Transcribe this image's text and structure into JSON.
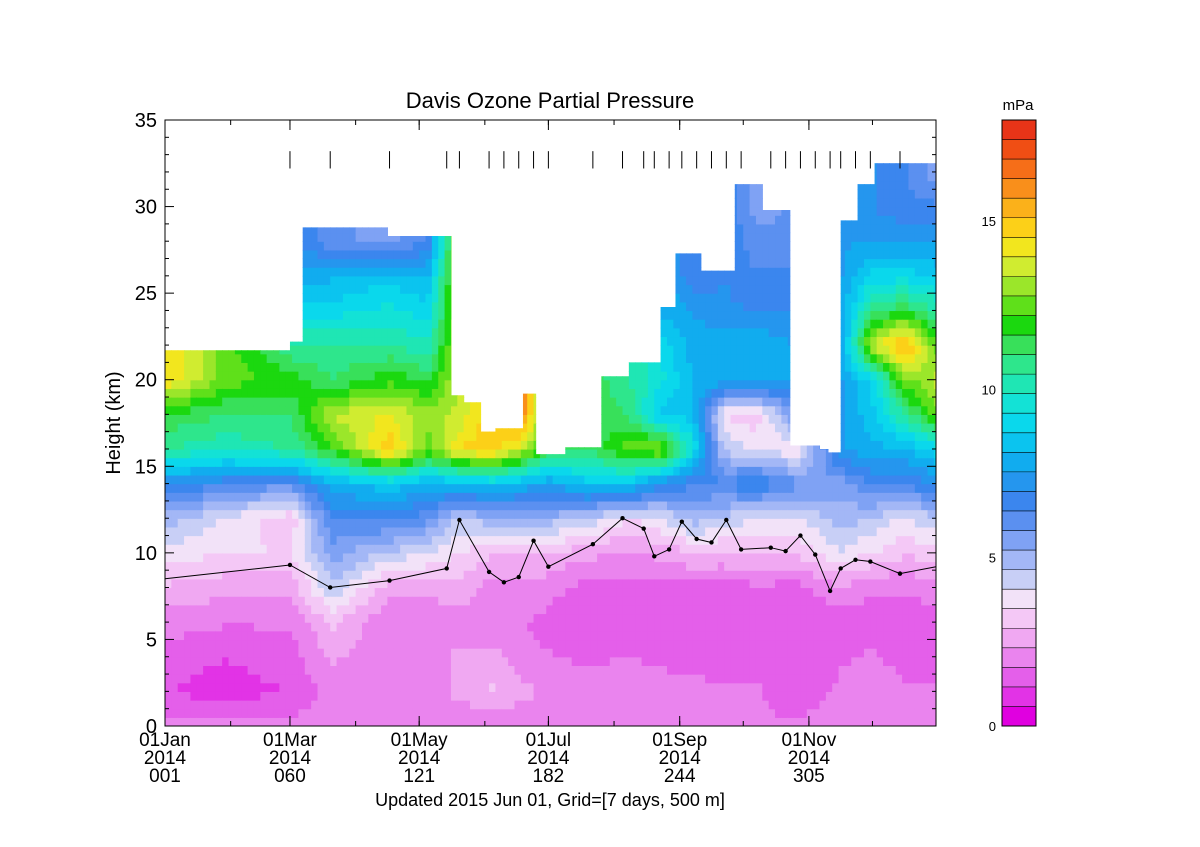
{
  "chart_data": {
    "type": "heatmap",
    "title": "Davis Ozone Partial Pressure",
    "ylabel": "Height (km)",
    "colorbar_label": "mPa",
    "footer": "Updated 2015 Jun 01, Grid=[7 days, 500 m]",
    "xlim": [
      1,
      365
    ],
    "ylim": [
      0,
      35
    ],
    "zlim": [
      0,
      18
    ],
    "y_ticks": [
      0,
      5,
      10,
      15,
      20,
      25,
      30,
      35
    ],
    "x_ticks": [
      {
        "day": 1,
        "date": "01Jan",
        "year": "2014",
        "doy": "001"
      },
      {
        "day": 60,
        "date": "01Mar",
        "year": "2014",
        "doy": "060"
      },
      {
        "day": 121,
        "date": "01May",
        "year": "2014",
        "doy": "121"
      },
      {
        "day": 182,
        "date": "01Jul",
        "year": "2014",
        "doy": "182"
      },
      {
        "day": 244,
        "date": "01Sep",
        "year": "2014",
        "doy": "244"
      },
      {
        "day": 305,
        "date": "01Nov",
        "year": "2014",
        "doy": "305"
      }
    ],
    "colorbar_ticks": [
      0,
      5,
      10,
      15
    ],
    "colormap": [
      "#e000e0",
      "#e233e6",
      "#e45fea",
      "#ea84ee",
      "#f0a8f2",
      "#f4c8f6",
      "#f2e2f8",
      "#c8cff6",
      "#a3b7f6",
      "#7fa2f4",
      "#5b90f0",
      "#3b86ee",
      "#2596ee",
      "#11acef",
      "#0bc4ef",
      "#0ad8ec",
      "#13e2d6",
      "#1fe6b4",
      "#2ee68c",
      "#38e05a",
      "#1bd80f",
      "#5fe01a",
      "#9be62a",
      "#d0ec30",
      "#f2e61e",
      "#fcd018",
      "#fbb11a",
      "#f98f1b",
      "#f66e18",
      "#f04e14",
      "#e83418"
    ],
    "sounding_days": [
      60,
      79,
      107,
      134,
      140,
      154,
      161,
      168,
      175,
      182,
      203,
      217,
      227,
      232,
      239,
      245,
      252,
      259,
      266,
      273,
      287,
      294,
      301,
      308,
      315,
      320,
      327,
      334,
      348
    ],
    "columns": [
      {
        "x0": 1,
        "x1": 60,
        "top": 21.7
      },
      {
        "x0": 60,
        "x1": 66,
        "top": 22.2
      },
      {
        "x0": 66,
        "x1": 106,
        "top": 28.8
      },
      {
        "x0": 106,
        "x1": 112,
        "top": 28.3
      },
      {
        "x0": 112,
        "x1": 136,
        "top": 28.3
      },
      {
        "x0": 136,
        "x1": 142,
        "top": 19.1
      },
      {
        "x0": 142,
        "x1": 150,
        "top": 18.7
      },
      {
        "x0": 150,
        "x1": 157,
        "top": 17.0
      },
      {
        "x0": 157,
        "x1": 170,
        "top": 17.2
      },
      {
        "x0": 170,
        "x1": 176,
        "top": 19.2
      },
      {
        "x0": 176,
        "x1": 190,
        "top": 15.7
      },
      {
        "x0": 190,
        "x1": 207,
        "top": 16.1
      },
      {
        "x0": 207,
        "x1": 220,
        "top": 20.2
      },
      {
        "x0": 220,
        "x1": 235,
        "top": 21.0
      },
      {
        "x0": 235,
        "x1": 242,
        "top": 24.2
      },
      {
        "x0": 242,
        "x1": 254,
        "top": 27.3
      },
      {
        "x0": 254,
        "x1": 270,
        "top": 26.3
      },
      {
        "x0": 270,
        "x1": 283,
        "top": 31.3
      },
      {
        "x0": 283,
        "x1": 296,
        "top": 29.8
      },
      {
        "x0": 296,
        "x1": 310,
        "top": 16.2
      },
      {
        "x0": 310,
        "x1": 314,
        "top": 16.0
      },
      {
        "x0": 314,
        "x1": 320,
        "top": 15.8
      },
      {
        "x0": 320,
        "x1": 328,
        "top": 29.2
      },
      {
        "x0": 328,
        "x1": 336,
        "top": 31.3
      },
      {
        "x0": 336,
        "x1": 365,
        "top": 32.5
      }
    ],
    "ozone_field": {
      "heights": [
        0,
        2,
        4,
        6,
        8,
        10,
        12,
        14,
        16,
        18,
        20,
        22,
        24,
        26,
        28,
        30,
        32
      ],
      "times": [
        1,
        30,
        60,
        80,
        107,
        125,
        140,
        155,
        170,
        182,
        200,
        220,
        235,
        250,
        265,
        280,
        300,
        320,
        335,
        350,
        365
      ],
      "values": [
        [
          2.0,
          2.2,
          2.0,
          1.8,
          1.8,
          1.8,
          1.8,
          1.8,
          1.8,
          1.8,
          2.0,
          2.1,
          2.0,
          2.0,
          1.8,
          1.8,
          1.8,
          2.0,
          2.0,
          2.0,
          2.0
        ],
        [
          1.2,
          0.8,
          1.2,
          2.0,
          2.0,
          2.0,
          2.5,
          3.0,
          2.5,
          2.2,
          2.0,
          2.1,
          2.2,
          2.0,
          1.8,
          1.8,
          1.5,
          1.8,
          2.0,
          1.8,
          1.8
        ],
        [
          1.5,
          1.2,
          1.5,
          2.4,
          2.0,
          2.0,
          2.5,
          2.5,
          2.0,
          1.8,
          1.6,
          1.8,
          1.5,
          1.4,
          1.5,
          1.5,
          1.6,
          1.7,
          1.8,
          1.6,
          1.6
        ],
        [
          2.0,
          1.8,
          1.8,
          3.0,
          1.8,
          1.8,
          2.0,
          2.0,
          1.8,
          1.5,
          1.3,
          1.4,
          1.2,
          1.2,
          1.3,
          1.4,
          1.4,
          1.4,
          1.5,
          1.4,
          1.5
        ],
        [
          2.8,
          2.5,
          2.5,
          4.5,
          2.6,
          2.5,
          2.8,
          2.0,
          2.2,
          2.0,
          1.5,
          1.5,
          1.5,
          1.6,
          1.5,
          1.6,
          1.5,
          2.2,
          1.8,
          1.8,
          2.0
        ],
        [
          3.8,
          3.5,
          3.5,
          5.5,
          4.5,
          4.0,
          3.5,
          3.0,
          3.0,
          2.8,
          2.5,
          2.2,
          2.5,
          2.8,
          2.8,
          3.0,
          3.0,
          4.0,
          3.5,
          3.0,
          3.2
        ],
        [
          5.0,
          4.0,
          3.0,
          6.5,
          6.5,
          6.0,
          4.5,
          5.0,
          5.0,
          5.0,
          4.5,
          3.5,
          4.0,
          5.0,
          4.5,
          4.0,
          4.0,
          5.0,
          4.5,
          4.0,
          4.5
        ],
        [
          7.0,
          6.5,
          6.0,
          8.0,
          8.5,
          8.0,
          8.0,
          8.5,
          8.0,
          7.5,
          8.5,
          8.5,
          7.0,
          6.5,
          6.5,
          7.0,
          6.0,
          5.5,
          6.5,
          6.5,
          7.0
        ],
        [
          10.5,
          10.0,
          10.5,
          12.0,
          15.0,
          12.5,
          14.5,
          15.0,
          13.5,
          11.5,
          11.0,
          12.5,
          13.0,
          9.5,
          4.5,
          4.0,
          3.5,
          7.5,
          8.0,
          8.0,
          9.0
        ],
        [
          11.5,
          11.0,
          11.0,
          13.5,
          14.0,
          13.0,
          13.5,
          null,
          16.0,
          null,
          11.5,
          11.0,
          8.5,
          8.5,
          3.5,
          3.0,
          6.0,
          null,
          8.5,
          10.5,
          12.5
        ],
        [
          14.5,
          12.5,
          12.0,
          11.0,
          12.0,
          11.5,
          null,
          null,
          null,
          null,
          11.5,
          10.5,
          9.5,
          8.0,
          8.0,
          8.0,
          7.5,
          null,
          9.0,
          12.5,
          13.5
        ],
        [
          null,
          null,
          10.5,
          10.5,
          10.5,
          10.0,
          null,
          null,
          null,
          null,
          null,
          null,
          9.0,
          8.0,
          8.0,
          8.0,
          7.5,
          null,
          13.5,
          15.5,
          12.5
        ],
        [
          null,
          null,
          9.0,
          9.0,
          9.5,
          9.0,
          null,
          null,
          null,
          null,
          null,
          null,
          8.0,
          7.5,
          7.0,
          7.0,
          7.0,
          null,
          11.0,
          11.5,
          10.5
        ],
        [
          null,
          null,
          8.0,
          8.0,
          8.5,
          8.0,
          null,
          null,
          null,
          null,
          null,
          null,
          null,
          6.5,
          7.0,
          6.5,
          6.5,
          null,
          9.0,
          9.0,
          8.5
        ],
        [
          null,
          null,
          7.0,
          6.0,
          5.5,
          6.5,
          null,
          null,
          null,
          null,
          null,
          null,
          null,
          null,
          null,
          6.0,
          6.0,
          null,
          7.5,
          7.5,
          7.5
        ],
        [
          null,
          null,
          null,
          null,
          null,
          null,
          null,
          null,
          null,
          null,
          null,
          null,
          null,
          null,
          null,
          5.5,
          6.0,
          null,
          7.0,
          6.5,
          6.5
        ],
        [
          null,
          null,
          null,
          null,
          null,
          null,
          null,
          null,
          null,
          null,
          null,
          null,
          null,
          null,
          null,
          null,
          null,
          null,
          null,
          null,
          5.5
        ]
      ]
    },
    "tropopause": {
      "x": [
        1,
        60,
        79,
        107,
        134,
        140,
        154,
        161,
        168,
        175,
        182,
        203,
        217,
        227,
        232,
        239,
        245,
        252,
        259,
        266,
        273,
        287,
        294,
        301,
        308,
        315,
        320,
        327,
        334,
        348,
        365
      ],
      "y": [
        8.5,
        9.3,
        8.0,
        8.4,
        9.1,
        11.9,
        8.9,
        8.3,
        8.6,
        10.7,
        9.2,
        10.5,
        12.0,
        11.4,
        9.8,
        10.2,
        11.8,
        10.8,
        10.6,
        11.9,
        10.2,
        10.3,
        10.1,
        11.0,
        9.9,
        7.8,
        9.1,
        9.6,
        9.5,
        8.8,
        9.2
      ]
    }
  }
}
